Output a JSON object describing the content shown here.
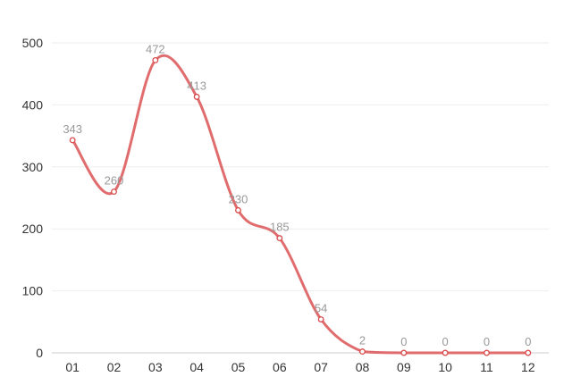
{
  "chart_data": {
    "type": "line",
    "smooth": true,
    "categories": [
      "01",
      "02",
      "03",
      "04",
      "05",
      "06",
      "07",
      "08",
      "09",
      "10",
      "11",
      "12"
    ],
    "values": [
      343,
      260,
      472,
      413,
      230,
      185,
      54,
      2,
      0,
      0,
      0,
      0
    ],
    "y_ticks": [
      "0",
      "100",
      "200",
      "300",
      "400",
      "500"
    ],
    "ylim": [
      0,
      500
    ],
    "grid": true,
    "legend": "none",
    "title": "",
    "xlabel": "",
    "ylabel": "",
    "colors": {
      "line": "#e06c6e",
      "marker_fill": "#ffffff",
      "marker_stroke": "#d94b4b",
      "label_text": "#999999",
      "axis_text": "#333333",
      "grid": "#eeeeee",
      "axis_line": "#cccccc"
    }
  }
}
